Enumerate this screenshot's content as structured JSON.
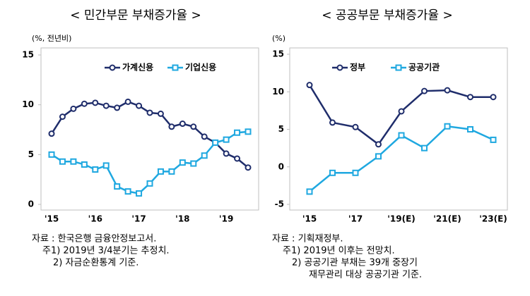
{
  "chart_data": [
    {
      "type": "line",
      "title": "< 민간부문 부채증가율 >",
      "y_label": "(%, 전년비)",
      "categories": [
        "'15",
        null,
        null,
        null,
        "'16",
        null,
        null,
        null,
        "'17",
        null,
        null,
        null,
        "'18",
        null,
        null,
        null,
        "'19",
        null,
        null
      ],
      "series": [
        {
          "name": "가계신용",
          "color": "#1f2d6b",
          "marker": "circle",
          "values": [
            7.1,
            8.8,
            9.6,
            10.1,
            10.2,
            9.9,
            9.7,
            10.3,
            9.9,
            9.2,
            9.1,
            7.8,
            8.1,
            7.8,
            6.8,
            6.2,
            5.1,
            4.6,
            3.7
          ]
        },
        {
          "name": "기업신용",
          "color": "#1fa8e0",
          "marker": "square",
          "values": [
            5.0,
            4.3,
            4.3,
            4.0,
            3.5,
            3.9,
            1.8,
            1.3,
            1.1,
            2.1,
            3.3,
            3.3,
            4.2,
            4.1,
            4.9,
            6.2,
            6.5,
            7.2,
            7.3
          ]
        }
      ],
      "ylim": [
        0,
        15
      ],
      "yticks": [
        0,
        5,
        10,
        15
      ],
      "legend": "top"
    },
    {
      "type": "line",
      "title": "< 공공부문 부채증가율 >",
      "y_label": "(%)",
      "categories": [
        "'15",
        null,
        "'17",
        null,
        "'19(E)",
        null,
        "'21(E)",
        null,
        "'23(E)"
      ],
      "series": [
        {
          "name": "정부",
          "color": "#1f2d6b",
          "marker": "circle",
          "values": [
            10.9,
            5.9,
            5.3,
            3.0,
            7.4,
            10.1,
            10.2,
            9.3,
            9.3
          ]
        },
        {
          "name": "공공기관",
          "color": "#1fa8e0",
          "marker": "square",
          "values": [
            -3.3,
            -0.8,
            -0.8,
            1.4,
            4.2,
            2.5,
            5.4,
            5.0,
            3.6
          ]
        }
      ],
      "ylim": [
        -5,
        15
      ],
      "yticks": [
        -5,
        0,
        5,
        10,
        15
      ],
      "legend": "top"
    }
  ],
  "notes": {
    "left": [
      "자료 : 한국은행 금융안정보고서.",
      "주1) 2019년 3/4분기는 추정치.",
      "2) 자금순환통계 기준."
    ],
    "right": [
      "자료 : 기획재정부.",
      "주1) 2019년 이후는 전망치.",
      "2) 공공기관 부채는 39개 중장기",
      "재무관리 대상 공공기관 기준."
    ]
  }
}
